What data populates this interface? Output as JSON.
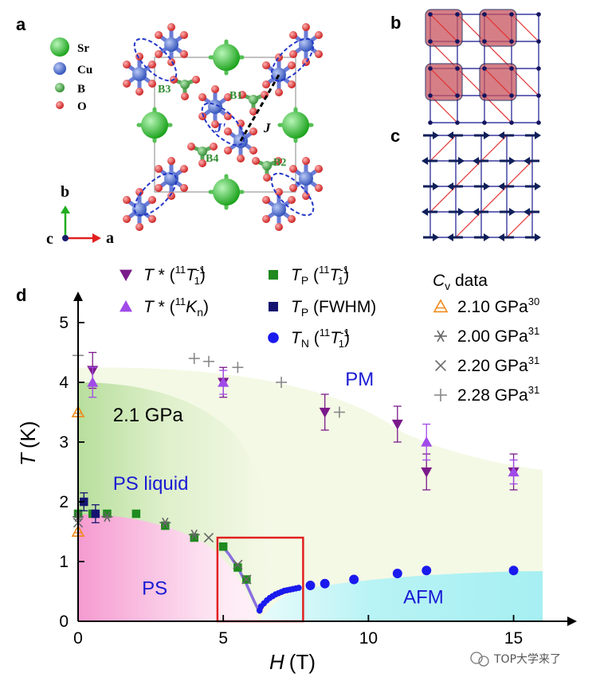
{
  "panels": {
    "a": {
      "label": "a",
      "atoms": [
        {
          "symbol": "Sr",
          "color": "#22b422"
        },
        {
          "symbol": "Cu",
          "color": "#3b5fc9"
        },
        {
          "symbol": "B",
          "color": "#3aa03a"
        },
        {
          "symbol": "O",
          "color": "#d42020"
        }
      ],
      "boron_sites": [
        "B1",
        "B2",
        "B3",
        "B4"
      ],
      "couplings": {
        "intra": "J'",
        "inter": "J"
      },
      "axes": {
        "vertical": "b",
        "horizontal": "a",
        "out": "c"
      }
    },
    "b": {
      "label": "b"
    },
    "c": {
      "label": "c"
    },
    "d": {
      "label": "d"
    }
  },
  "chart_data": {
    "type": "scatter",
    "xlabel_var": "H",
    "xlabel_unit": "(T)",
    "ylabel_var": "T",
    "ylabel_unit": "(K)",
    "xlim": [
      0,
      17
    ],
    "ylim": [
      0,
      5.5
    ],
    "xticks": [
      0,
      5,
      10,
      15
    ],
    "yticks": [
      0,
      1,
      2,
      3,
      4,
      5
    ],
    "annotations": [
      {
        "text": "2.1 GPa",
        "x": 1.2,
        "y": 3.35,
        "color": "#000000"
      },
      {
        "text": "PS liquid",
        "x": 1.2,
        "y": 2.2,
        "color": "#1a1ad4"
      },
      {
        "text": "PM",
        "x": 9.2,
        "y": 3.95,
        "color": "#1a1ad4"
      },
      {
        "text": "PS",
        "x": 2.2,
        "y": 0.45,
        "color": "#1a1ad4"
      },
      {
        "text": "AFM",
        "x": 11.2,
        "y": 0.3,
        "color": "#1a1ad4"
      }
    ],
    "highlight_box": {
      "x": [
        4.8,
        7.75
      ],
      "y": [
        0,
        1.4
      ],
      "color": "#e02020"
    },
    "legend": [
      {
        "base": "T",
        "sup": "*",
        "paren": "11T",
        "paren_sup": "-1",
        "paren_sub": "1",
        "marker": "triangle-down",
        "color": "#7b1a8a"
      },
      {
        "base": "T",
        "sup": "*",
        "paren": "11K",
        "paren_sub": "n",
        "marker": "triangle-up",
        "color": "#a04ae8"
      },
      {
        "base": "T",
        "sub": "P",
        "paren": "11T",
        "paren_sup": "-1",
        "paren_sub": "1",
        "marker": "square",
        "color": "#1f8a1f"
      },
      {
        "base": "T",
        "sub": "P",
        "paren_plain": "FWHM",
        "marker": "square",
        "color": "#141470"
      },
      {
        "base": "T",
        "sub": "N",
        "paren": "11T",
        "paren_sup": "-1",
        "paren_sub": "1",
        "marker": "circle",
        "color": "#1a1aee"
      }
    ],
    "cv_legend_title": {
      "var": "C",
      "sub": "v",
      "rest": " data"
    },
    "cv_legend": [
      {
        "text": "2.10 GPa",
        "ref": "30",
        "marker": "triangle-open",
        "color": "#f08a1a"
      },
      {
        "text": "2.00 GPa",
        "ref": "31",
        "marker": "asterisk",
        "color": "#666666"
      },
      {
        "text": "2.20 GPa",
        "ref": "31",
        "marker": "cross",
        "color": "#666666"
      },
      {
        "text": "2.28 GPa",
        "ref": "31",
        "marker": "plus",
        "color": "#888888"
      }
    ],
    "series": [
      {
        "key": "tstar_t1",
        "marker": "triangle-down",
        "color": "#7b1a8a",
        "points": [
          [
            0.5,
            4.2,
            0.3
          ],
          [
            5.0,
            4.0,
            0.25
          ],
          [
            8.5,
            3.5,
            0.3
          ],
          [
            11.0,
            3.3,
            0.3
          ],
          [
            12.0,
            2.5,
            0.3
          ],
          [
            15.0,
            2.5,
            0.3
          ]
        ]
      },
      {
        "key": "tstar_kn",
        "marker": "triangle-up",
        "color": "#a04ae8",
        "points": [
          [
            0.5,
            4.0,
            0.25
          ],
          [
            5.0,
            4.0,
            0.2
          ],
          [
            12.0,
            3.0,
            0.3
          ],
          [
            15.0,
            2.5,
            0.2
          ]
        ]
      },
      {
        "key": "tp_t1",
        "marker": "square",
        "color": "#1f8a1f",
        "points": [
          [
            0.0,
            1.8
          ],
          [
            0.5,
            1.8
          ],
          [
            1.0,
            1.8
          ],
          [
            2.0,
            1.8
          ],
          [
            3.0,
            1.6
          ],
          [
            4.0,
            1.4
          ],
          [
            5.0,
            1.25
          ],
          [
            5.5,
            0.9
          ],
          [
            5.8,
            0.7
          ]
        ]
      },
      {
        "key": "tp_fwhm",
        "marker": "square",
        "color": "#141470",
        "points": [
          [
            0.2,
            2.0,
            0.15
          ],
          [
            0.6,
            1.8,
            0.15
          ]
        ]
      },
      {
        "key": "tn_t1",
        "marker": "circle",
        "color": "#1a1aee",
        "points": [
          [
            6.25,
            0.18
          ],
          [
            6.3,
            0.25
          ],
          [
            6.4,
            0.3
          ],
          [
            6.5,
            0.35
          ],
          [
            6.6,
            0.39
          ],
          [
            6.7,
            0.42
          ],
          [
            6.8,
            0.45
          ],
          [
            6.9,
            0.47
          ],
          [
            7.0,
            0.49
          ],
          [
            7.1,
            0.51
          ],
          [
            7.2,
            0.52
          ],
          [
            7.3,
            0.53
          ],
          [
            7.4,
            0.54
          ],
          [
            7.5,
            0.55
          ],
          [
            7.6,
            0.56
          ],
          [
            8.0,
            0.6
          ],
          [
            8.5,
            0.63
          ],
          [
            9.5,
            0.7
          ],
          [
            11.0,
            0.8
          ],
          [
            12.0,
            0.85
          ],
          [
            15.0,
            0.85
          ]
        ]
      },
      {
        "key": "cv_210",
        "marker": "triangle-open",
        "color": "#f08a1a",
        "points": [
          [
            0.0,
            3.5
          ],
          [
            0.0,
            1.5
          ]
        ]
      },
      {
        "key": "cv_200",
        "marker": "asterisk",
        "color": "#666666",
        "points": [
          [
            0.0,
            1.75
          ],
          [
            1.0,
            1.75
          ],
          [
            3.0,
            1.65
          ],
          [
            4.0,
            1.45
          ]
        ]
      },
      {
        "key": "cv_220",
        "marker": "cross",
        "color": "#666666",
        "points": [
          [
            0.0,
            1.65
          ],
          [
            4.5,
            1.4
          ],
          [
            5.5,
            0.95
          ],
          [
            5.8,
            0.7
          ]
        ]
      },
      {
        "key": "cv_228",
        "marker": "plus",
        "color": "#888888",
        "points": [
          [
            0.0,
            4.45
          ],
          [
            4.0,
            4.4
          ],
          [
            4.5,
            4.35
          ],
          [
            5.5,
            4.25
          ],
          [
            7.0,
            4.0
          ],
          [
            9.0,
            3.5
          ]
        ]
      }
    ],
    "fit_curves": [
      {
        "color": "#8a6ee0",
        "points": [
          [
            4.9,
            1.3
          ],
          [
            5.2,
            1.12
          ],
          [
            5.5,
            0.9
          ],
          [
            5.8,
            0.62
          ],
          [
            6.05,
            0.35
          ],
          [
            6.25,
            0.15
          ]
        ]
      },
      {
        "color": "#cc2a4a",
        "points": [
          [
            6.25,
            0.15
          ],
          [
            6.4,
            0.28
          ],
          [
            6.6,
            0.37
          ],
          [
            6.9,
            0.45
          ],
          [
            7.2,
            0.5
          ],
          [
            7.6,
            0.55
          ]
        ]
      }
    ]
  },
  "watermark": "TOP大学来了"
}
